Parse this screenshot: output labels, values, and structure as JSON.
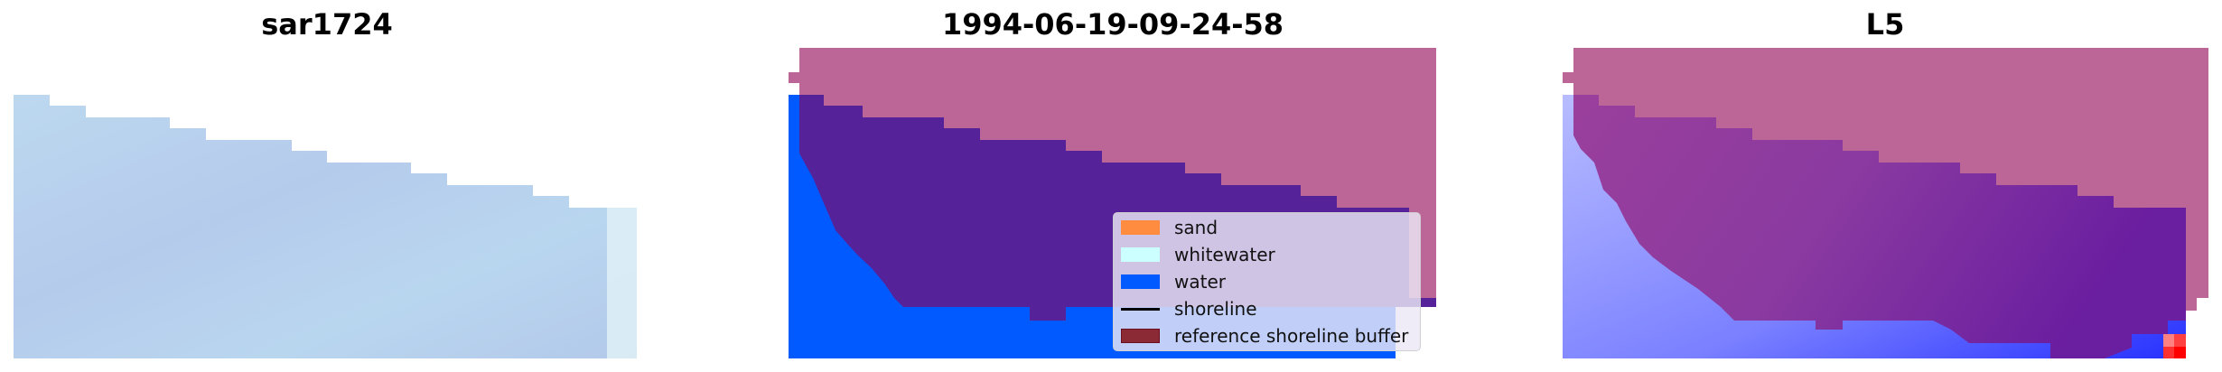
{
  "chart_data": [
    {
      "type": "heatmap",
      "title": "sar1724",
      "description_colors": {
        "fill": "#b8d2ee"
      }
    },
    {
      "type": "heatmap",
      "title": "1994-06-19-09-24-58",
      "legend": {
        "placement": "lower-right",
        "entries": [
          {
            "label": "sand",
            "color": "#ff8c3f",
            "kind": "patch"
          },
          {
            "label": "whitewater",
            "color": "#ccffff",
            "kind": "patch"
          },
          {
            "label": "water",
            "color": "#005aff",
            "kind": "patch"
          },
          {
            "label": "shoreline",
            "color": "#000000",
            "kind": "line"
          },
          {
            "label": "reference shoreline buffer",
            "color": "#8b2a35",
            "kind": "patch"
          }
        ]
      }
    },
    {
      "type": "heatmap",
      "title": "L5"
    }
  ],
  "colors": {
    "buffer_overlay": "#bb6696",
    "class_purple": "#55229a",
    "water": "#005aff",
    "l5_purple": "#8a3a9e",
    "l5_blue": "#8c94ff"
  }
}
